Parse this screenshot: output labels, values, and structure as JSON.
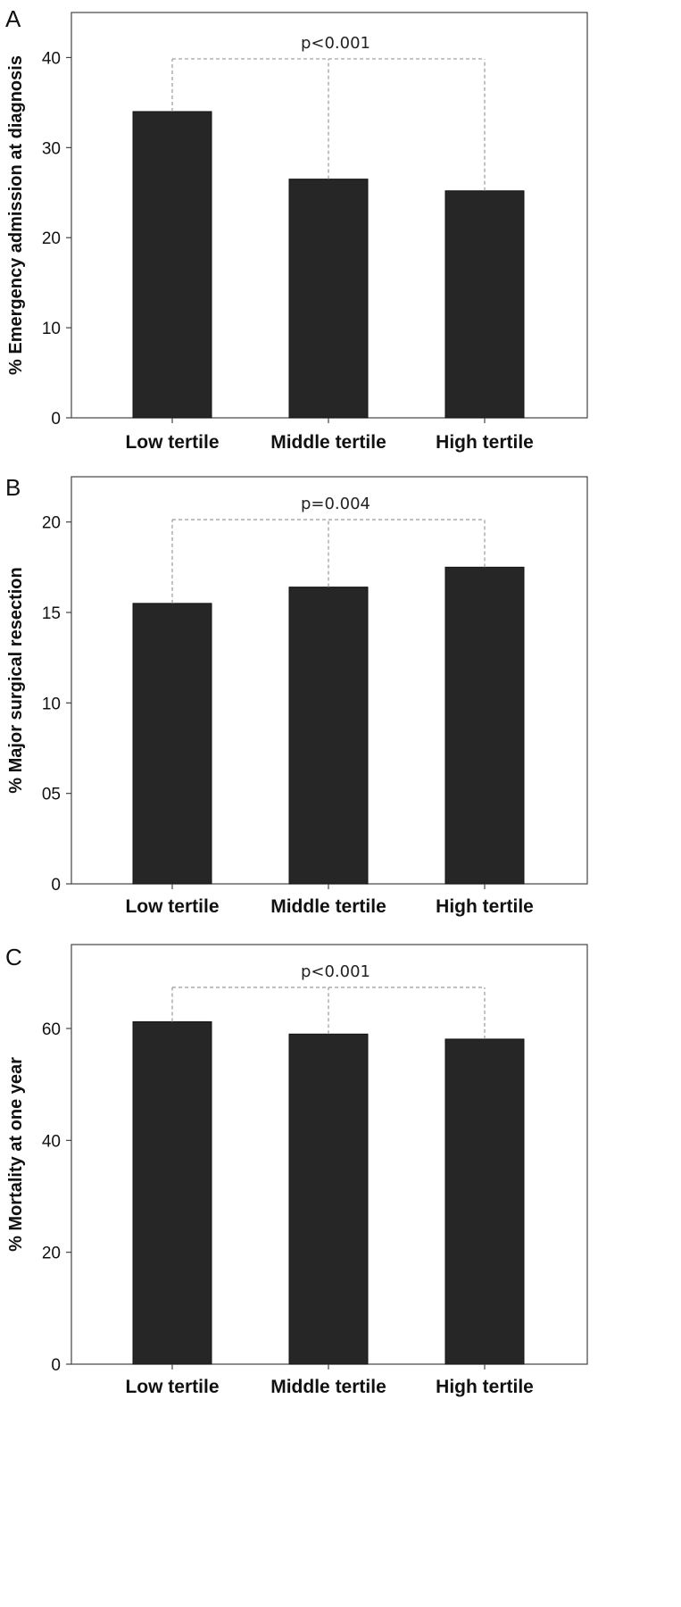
{
  "chart_data": [
    {
      "type": "bar",
      "panel": "A",
      "categories": [
        "Low tertile",
        "Middle tertile",
        "High tertile"
      ],
      "values": [
        34.0,
        26.5,
        25.2
      ],
      "ylabel": "% Emergency admission at diagnosis",
      "ylim": [
        0,
        45
      ],
      "yticks": [
        0,
        10,
        20,
        30,
        40
      ],
      "ytick_labels": [
        "0",
        "10",
        "20",
        "30",
        "40"
      ],
      "annotation": "p<0.001",
      "bar_color": "#262626"
    },
    {
      "type": "bar",
      "panel": "B",
      "categories": [
        "Low tertile",
        "Middle tertile",
        "High tertile"
      ],
      "values": [
        15.5,
        16.4,
        17.5
      ],
      "ylabel": "% Major surgical resection",
      "ylim": [
        0,
        22.5
      ],
      "yticks": [
        0,
        5,
        10,
        15,
        20
      ],
      "ytick_labels": [
        "0",
        "05",
        "10",
        "15",
        "20"
      ],
      "annotation": "p=0.004",
      "bar_color": "#262626"
    },
    {
      "type": "bar",
      "panel": "C",
      "categories": [
        "Low tertile",
        "Middle tertile",
        "High tertile"
      ],
      "values": [
        61.2,
        59.0,
        58.1
      ],
      "ylabel": "% Mortality at one year",
      "ylim": [
        0,
        75
      ],
      "yticks": [
        0,
        20,
        40,
        60
      ],
      "ytick_labels": [
        "0",
        "20",
        "40",
        "60"
      ],
      "annotation": "p<0.001",
      "bar_color": "#262626"
    }
  ]
}
